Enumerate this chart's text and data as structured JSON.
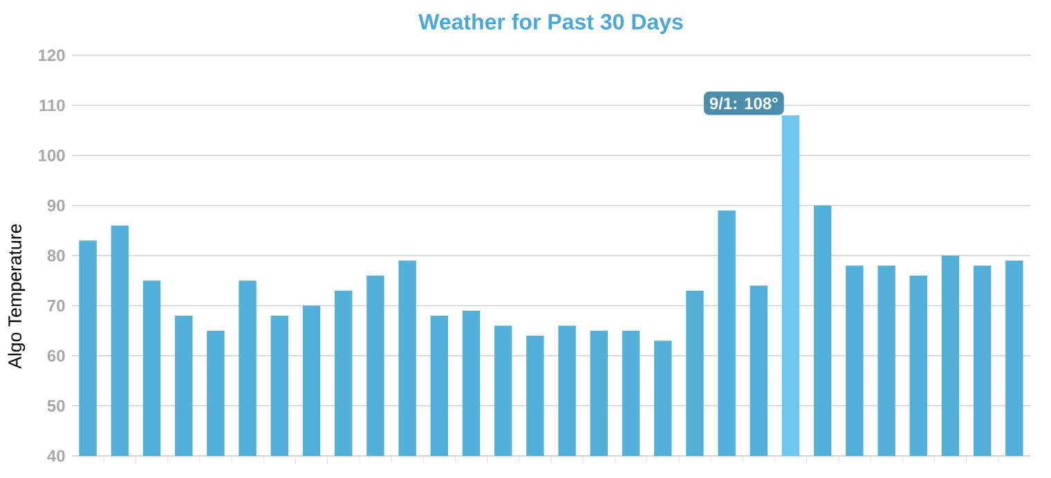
{
  "chart_data": {
    "type": "bar",
    "title": "Weather for Past 30 Days",
    "ylabel": "Algo Temperature",
    "categories": [
      null,
      null,
      null,
      null,
      null,
      null,
      null,
      null,
      null,
      null,
      null,
      null,
      null,
      null,
      null,
      null,
      null,
      null,
      null,
      null,
      null,
      null,
      null,
      null,
      null,
      null,
      null,
      null,
      null,
      null
    ],
    "values": [
      83,
      86,
      75,
      68,
      65,
      75,
      68,
      70,
      73,
      76,
      79,
      68,
      69,
      66,
      64,
      66,
      65,
      65,
      63,
      73,
      89,
      74,
      108,
      90,
      78,
      78,
      76,
      80,
      78,
      79
    ],
    "colors": [
      "#55b0d9",
      "#55b0d9",
      "#55b0d9",
      "#55b0d9",
      "#55b0d9",
      "#55b0d9",
      "#55b0d9",
      "#55b0d9",
      "#55b0d9",
      "#55b0d9",
      "#55b0d9",
      "#55b0d9",
      "#55b0d9",
      "#55b0d9",
      "#55b0d9",
      "#55b0d9",
      "#55b0d9",
      "#55b0d9",
      "#55b0d9",
      "#55b0d9",
      "#55b0d9",
      "#55b0d9",
      "#6fc6ee",
      "#55b0d9",
      "#55b0d9",
      "#55b0d9",
      "#55b0d9",
      "#55b0d9",
      "#55b0d9",
      "#55b0d9"
    ],
    "ylim": [
      40,
      120
    ],
    "yticks": [
      40,
      50,
      60,
      70,
      80,
      90,
      100,
      110,
      120
    ],
    "grid": "y",
    "annotations": [
      "9/1: 108°"
    ]
  }
}
